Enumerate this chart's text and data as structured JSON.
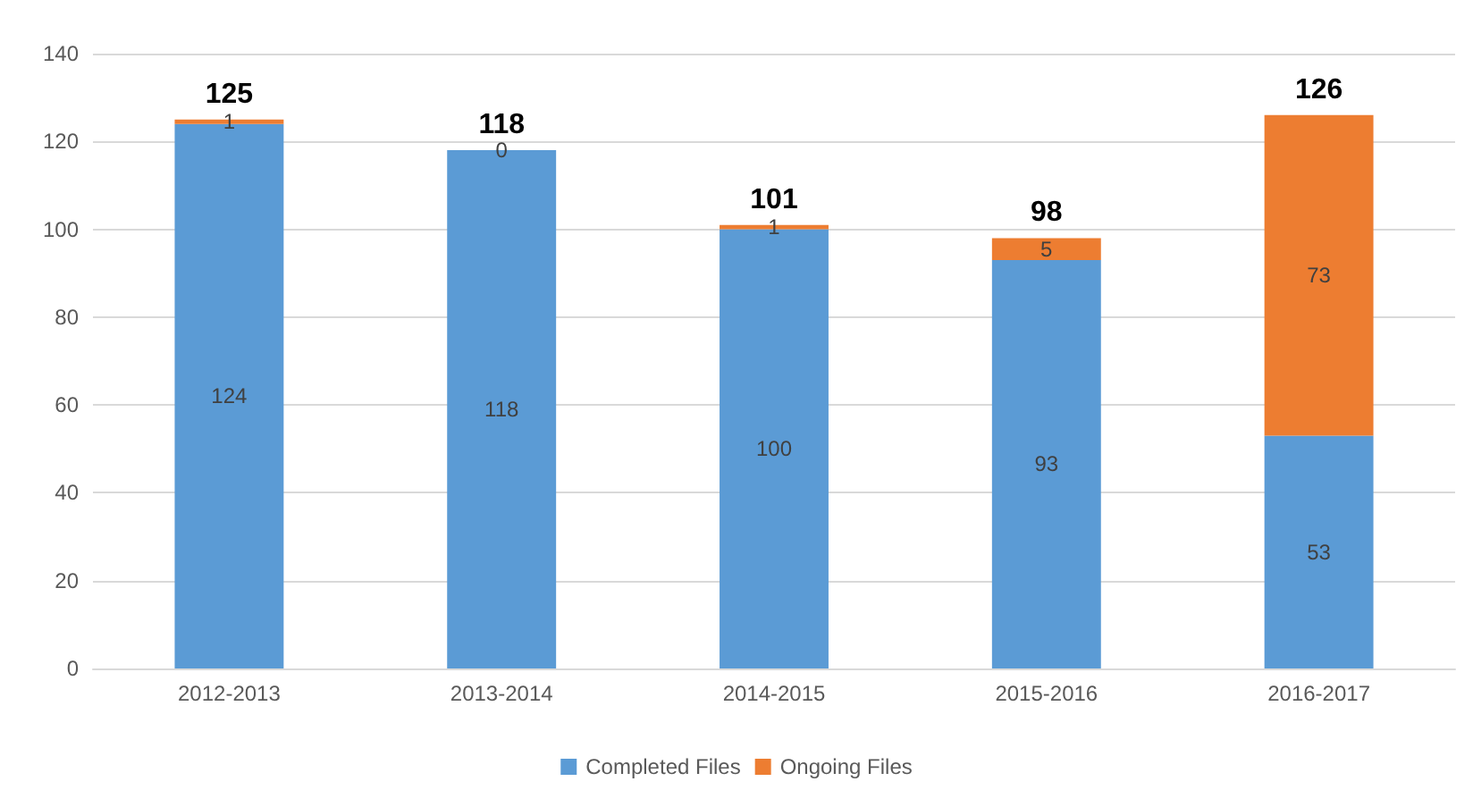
{
  "chart_data": {
    "type": "bar",
    "stacked": true,
    "categories": [
      "2012-2013",
      "2013-2014",
      "2014-2015",
      "2015-2016",
      "2016-2017"
    ],
    "series": [
      {
        "name": "Completed Files",
        "color": "#5b9bd5",
        "values": [
          124,
          118,
          100,
          93,
          53
        ]
      },
      {
        "name": "Ongoing Files",
        "color": "#ed7d31",
        "values": [
          1,
          0,
          1,
          5,
          73
        ]
      }
    ],
    "totals": [
      "125",
      "118",
      "101",
      "98",
      "126"
    ],
    "ylim": [
      0,
      140
    ],
    "yticks": [
      0,
      20,
      40,
      60,
      80,
      100,
      120,
      140
    ],
    "grid": "y",
    "legend": "bottom",
    "data_labels": true
  }
}
